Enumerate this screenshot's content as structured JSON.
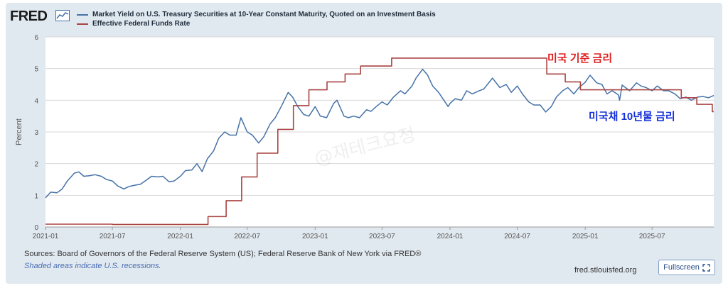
{
  "header": {
    "logo_text": "FRED",
    "logo_icon": "chart-line-icon"
  },
  "chart_data": {
    "type": "line",
    "ylabel": "Percent",
    "ylim": [
      0,
      6
    ],
    "yticks": [
      "0",
      "1",
      "2",
      "3",
      "4",
      "5",
      "6"
    ],
    "xticks": [
      "2021-01",
      "2021-07",
      "2022-01",
      "2022-07",
      "2023-01",
      "2023-07",
      "2024-01",
      "2024-07",
      "2025-01",
      "2025-07"
    ],
    "xrange": [
      "2021-01-01",
      "2025-12-15"
    ],
    "grid": true,
    "legend_position": "top-left",
    "series": [
      {
        "name": "Market Yield on U.S. Treasury Securities at 10-Year Constant Maturity, Quoted on an Investment Basis",
        "color": "#4572a7",
        "step": false,
        "points": [
          [
            "2021-01-01",
            0.92
          ],
          [
            "2021-01-15",
            1.1
          ],
          [
            "2021-02-01",
            1.08
          ],
          [
            "2021-02-15",
            1.2
          ],
          [
            "2021-03-01",
            1.45
          ],
          [
            "2021-03-20",
            1.7
          ],
          [
            "2021-04-01",
            1.74
          ],
          [
            "2021-04-15",
            1.6
          ],
          [
            "2021-05-01",
            1.62
          ],
          [
            "2021-05-15",
            1.65
          ],
          [
            "2021-06-01",
            1.6
          ],
          [
            "2021-06-15",
            1.5
          ],
          [
            "2021-07-01",
            1.45
          ],
          [
            "2021-07-15",
            1.3
          ],
          [
            "2021-08-01",
            1.2
          ],
          [
            "2021-08-15",
            1.28
          ],
          [
            "2021-09-01",
            1.32
          ],
          [
            "2021-09-15",
            1.35
          ],
          [
            "2021-10-01",
            1.48
          ],
          [
            "2021-10-15",
            1.6
          ],
          [
            "2021-11-01",
            1.58
          ],
          [
            "2021-11-15",
            1.6
          ],
          [
            "2021-12-01",
            1.43
          ],
          [
            "2021-12-15",
            1.45
          ],
          [
            "2022-01-01",
            1.6
          ],
          [
            "2022-01-15",
            1.78
          ],
          [
            "2022-02-01",
            1.8
          ],
          [
            "2022-02-15",
            2.0
          ],
          [
            "2022-03-01",
            1.75
          ],
          [
            "2022-03-15",
            2.15
          ],
          [
            "2022-04-01",
            2.4
          ],
          [
            "2022-04-15",
            2.8
          ],
          [
            "2022-05-01",
            3.0
          ],
          [
            "2022-05-15",
            2.9
          ],
          [
            "2022-06-01",
            2.9
          ],
          [
            "2022-06-14",
            3.45
          ],
          [
            "2022-07-01",
            3.0
          ],
          [
            "2022-07-15",
            2.9
          ],
          [
            "2022-08-01",
            2.65
          ],
          [
            "2022-08-15",
            2.85
          ],
          [
            "2022-09-01",
            3.25
          ],
          [
            "2022-09-15",
            3.45
          ],
          [
            "2022-10-01",
            3.8
          ],
          [
            "2022-10-20",
            4.25
          ],
          [
            "2022-11-01",
            4.1
          ],
          [
            "2022-11-15",
            3.8
          ],
          [
            "2022-12-01",
            3.55
          ],
          [
            "2022-12-15",
            3.5
          ],
          [
            "2023-01-01",
            3.8
          ],
          [
            "2023-01-15",
            3.5
          ],
          [
            "2023-02-01",
            3.45
          ],
          [
            "2023-02-20",
            3.9
          ],
          [
            "2023-03-01",
            4.0
          ],
          [
            "2023-03-20",
            3.5
          ],
          [
            "2023-04-01",
            3.45
          ],
          [
            "2023-04-15",
            3.5
          ],
          [
            "2023-05-01",
            3.45
          ],
          [
            "2023-05-20",
            3.7
          ],
          [
            "2023-06-01",
            3.65
          ],
          [
            "2023-06-15",
            3.8
          ],
          [
            "2023-07-01",
            3.95
          ],
          [
            "2023-07-15",
            3.85
          ],
          [
            "2023-08-01",
            4.1
          ],
          [
            "2023-08-20",
            4.3
          ],
          [
            "2023-09-01",
            4.2
          ],
          [
            "2023-09-20",
            4.45
          ],
          [
            "2023-10-01",
            4.7
          ],
          [
            "2023-10-19",
            4.98
          ],
          [
            "2023-11-01",
            4.8
          ],
          [
            "2023-11-15",
            4.45
          ],
          [
            "2023-12-01",
            4.25
          ],
          [
            "2023-12-27",
            3.8
          ],
          [
            "2024-01-01",
            3.9
          ],
          [
            "2024-01-15",
            4.05
          ],
          [
            "2024-02-01",
            4.0
          ],
          [
            "2024-02-15",
            4.3
          ],
          [
            "2024-03-01",
            4.2
          ],
          [
            "2024-03-20",
            4.3
          ],
          [
            "2024-04-01",
            4.35
          ],
          [
            "2024-04-25",
            4.7
          ],
          [
            "2024-05-15",
            4.4
          ],
          [
            "2024-06-01",
            4.5
          ],
          [
            "2024-06-15",
            4.25
          ],
          [
            "2024-07-01",
            4.45
          ],
          [
            "2024-07-15",
            4.2
          ],
          [
            "2024-08-01",
            3.95
          ],
          [
            "2024-08-15",
            3.85
          ],
          [
            "2024-09-01",
            3.85
          ],
          [
            "2024-09-16",
            3.63
          ],
          [
            "2024-10-01",
            3.8
          ],
          [
            "2024-10-15",
            4.1
          ],
          [
            "2024-11-01",
            4.3
          ],
          [
            "2024-11-15",
            4.4
          ],
          [
            "2024-12-01",
            4.2
          ],
          [
            "2024-12-15",
            4.4
          ],
          [
            "2025-01-01",
            4.57
          ],
          [
            "2025-01-14",
            4.79
          ],
          [
            "2025-02-01",
            4.55
          ],
          [
            "2025-02-15",
            4.5
          ],
          [
            "2025-03-01",
            4.2
          ],
          [
            "2025-03-15",
            4.3
          ],
          [
            "2025-04-01",
            4.17
          ],
          [
            "2025-04-04",
            4.0
          ],
          [
            "2025-04-11",
            4.48
          ],
          [
            "2025-05-01",
            4.3
          ],
          [
            "2025-05-20",
            4.55
          ],
          [
            "2025-06-01",
            4.45
          ],
          [
            "2025-06-15",
            4.4
          ],
          [
            "2025-07-01",
            4.3
          ],
          [
            "2025-07-15",
            4.45
          ],
          [
            "2025-08-01",
            4.3
          ],
          [
            "2025-08-15",
            4.3
          ],
          [
            "2025-09-01",
            4.2
          ],
          [
            "2025-09-15",
            4.05
          ],
          [
            "2025-10-01",
            4.1
          ],
          [
            "2025-10-15",
            4.0
          ],
          [
            "2025-11-01",
            4.1
          ],
          [
            "2025-11-15",
            4.12
          ],
          [
            "2025-12-01",
            4.08
          ],
          [
            "2025-12-15",
            4.15
          ]
        ]
      },
      {
        "name": "Effective Federal Funds Rate",
        "color": "#a94442",
        "step": true,
        "points": [
          [
            "2021-01-01",
            0.09
          ],
          [
            "2021-07-01",
            0.08
          ],
          [
            "2022-01-01",
            0.08
          ],
          [
            "2022-03-17",
            0.33
          ],
          [
            "2022-05-05",
            0.83
          ],
          [
            "2022-06-16",
            1.58
          ],
          [
            "2022-07-28",
            2.33
          ],
          [
            "2022-09-22",
            3.08
          ],
          [
            "2022-11-03",
            3.83
          ],
          [
            "2022-12-15",
            4.33
          ],
          [
            "2023-02-02",
            4.58
          ],
          [
            "2023-03-23",
            4.83
          ],
          [
            "2023-05-04",
            5.08
          ],
          [
            "2023-07-27",
            5.33
          ],
          [
            "2024-09-19",
            4.83
          ],
          [
            "2024-11-08",
            4.58
          ],
          [
            "2024-12-19",
            4.33
          ],
          [
            "2025-09-18",
            4.08
          ],
          [
            "2025-10-30",
            3.87
          ],
          [
            "2025-12-11",
            3.64
          ],
          [
            "2025-12-15",
            3.64
          ]
        ]
      }
    ]
  },
  "annotations": {
    "fed_rate_label": "미국 기준 금리",
    "treasury_label": "미국채 10년물 금리"
  },
  "watermark": "@재테크요정",
  "footer": {
    "sources": "Sources: Board of Governors of the Federal Reserve System (US); Federal Reserve Bank of New York via FRED®",
    "shaded": "Shaded areas indicate U.S. recessions.",
    "url": "fred.stlouisfed.org",
    "fullscreen_label": "Fullscreen",
    "fullscreen_icon": "expand-icon"
  }
}
